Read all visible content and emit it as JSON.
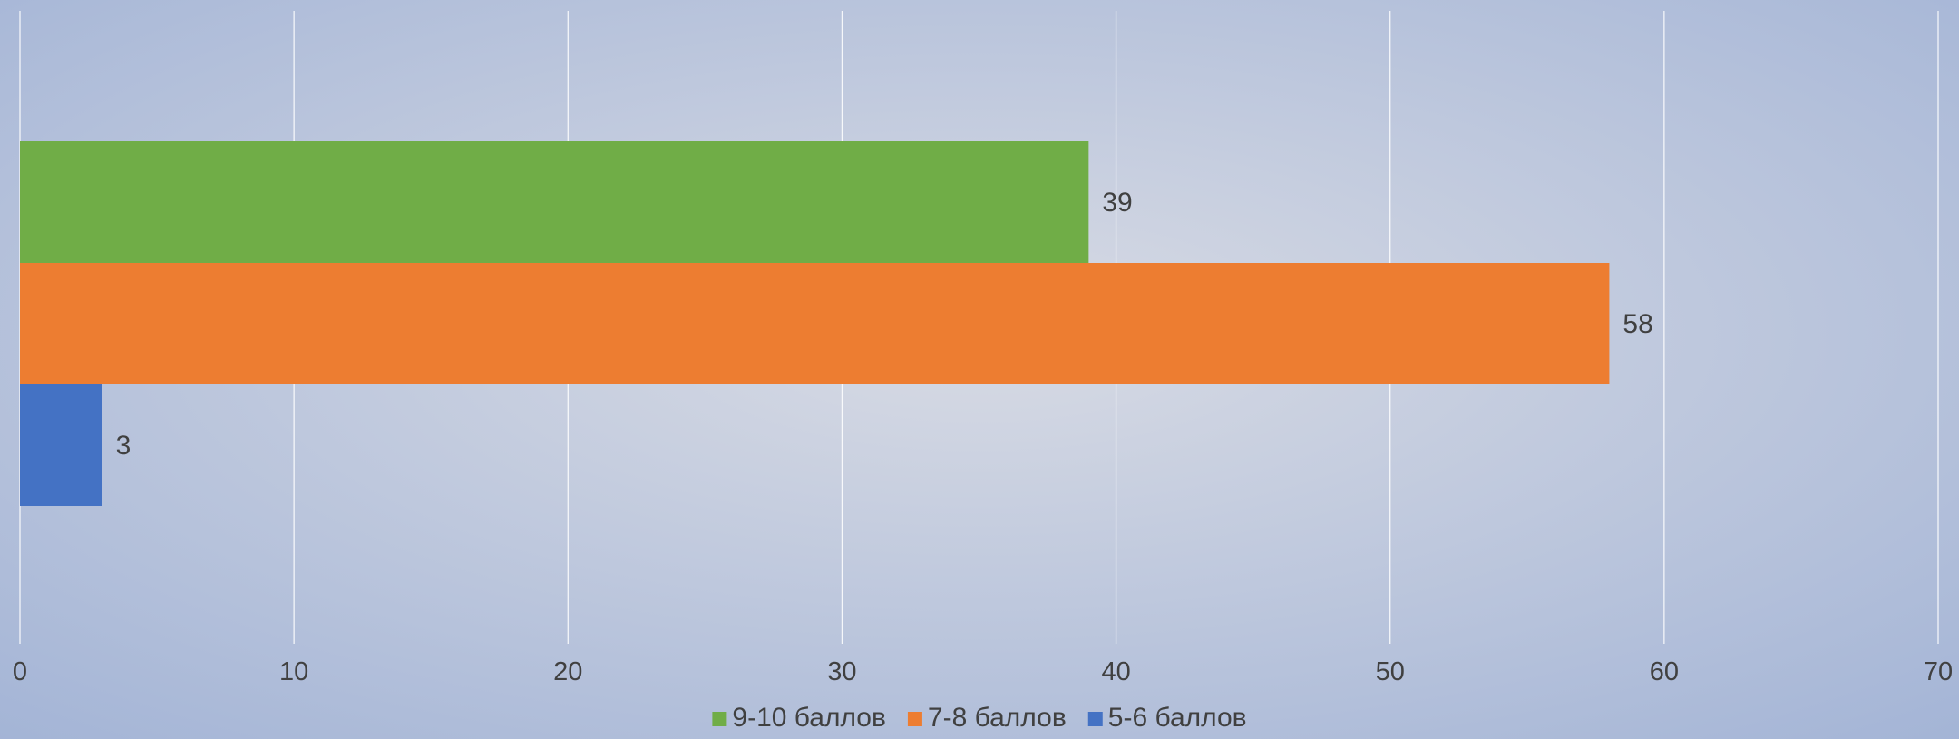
{
  "chart_data": {
    "type": "bar",
    "orientation": "horizontal",
    "grid": true,
    "xlim": [
      0,
      70
    ],
    "x_ticks": [
      0,
      10,
      20,
      30,
      40,
      50,
      60,
      70
    ],
    "legend_position": "bottom",
    "series": [
      {
        "name": "9-10 баллов",
        "value": 39,
        "color": "#70AD47"
      },
      {
        "name": "7-8 баллов",
        "value": 58,
        "color": "#ED7D31"
      },
      {
        "name": "5-6 баллов",
        "value": 3,
        "color": "#4472C4"
      }
    ],
    "legend_order": [
      0,
      1,
      2
    ],
    "axis_color": "#FFFFFF",
    "label_color": "#404040",
    "background": {
      "center": "#D8DBE4",
      "edge": "#A3B4D6"
    }
  }
}
